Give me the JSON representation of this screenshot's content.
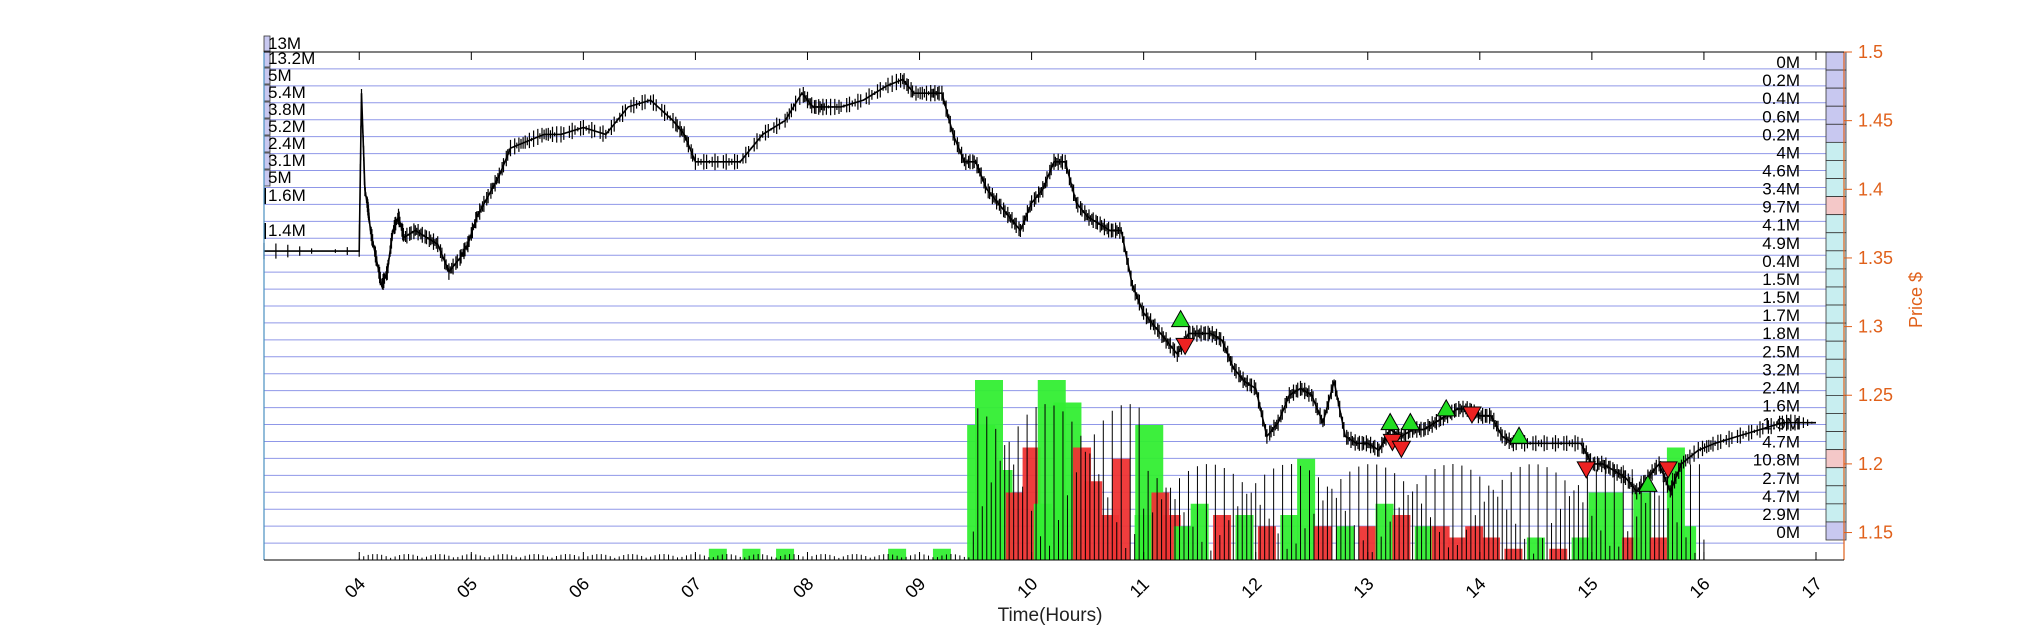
{
  "chart_data": {
    "type": "line",
    "xlabel": "Time(Hours)",
    "ylabel": "Price $",
    "xlim": [
      3.15,
      17.25
    ],
    "ylim": [
      1.13,
      1.5
    ],
    "x_ticks": [
      4,
      5,
      6,
      7,
      8,
      9,
      10,
      11,
      12,
      13,
      14,
      15,
      16,
      17
    ],
    "x_tick_labels": [
      "04",
      "05",
      "06",
      "07",
      "08",
      "09",
      "10",
      "11",
      "12",
      "13",
      "14",
      "15",
      "16",
      "17"
    ],
    "y_ticks": [
      1.15,
      1.2,
      1.25,
      1.3,
      1.35,
      1.4,
      1.45,
      1.5
    ],
    "y_tick_labels": [
      "1.15",
      "1.2",
      "1.25",
      "1.3",
      "1.35",
      "1.4",
      "1.45",
      "1.5"
    ],
    "price_series": {
      "x": [
        3.15,
        4.0,
        4.02,
        4.05,
        4.08,
        4.1,
        4.15,
        4.2,
        4.25,
        4.3,
        4.35,
        4.4,
        4.5,
        4.6,
        4.7,
        4.8,
        4.9,
        4.97,
        5.05,
        5.15,
        5.25,
        5.35,
        5.5,
        5.65,
        5.8,
        6.0,
        6.2,
        6.4,
        6.6,
        6.8,
        6.9,
        7.0,
        7.2,
        7.4,
        7.6,
        7.8,
        7.95,
        8.05,
        8.15,
        8.3,
        8.5,
        8.7,
        8.85,
        8.95,
        9.1,
        9.2,
        9.3,
        9.4,
        9.5,
        9.6,
        9.7,
        9.8,
        9.9,
        10.0,
        10.1,
        10.2,
        10.3,
        10.4,
        10.5,
        10.6,
        10.7,
        10.8,
        10.9,
        11.0,
        11.1,
        11.2,
        11.3,
        11.4,
        11.5,
        11.6,
        11.7,
        11.8,
        11.9,
        12.0,
        12.1,
        12.2,
        12.3,
        12.4,
        12.5,
        12.6,
        12.7,
        12.8,
        12.9,
        13.0,
        13.1,
        13.2,
        13.3,
        13.4,
        13.5,
        13.6,
        13.7,
        13.8,
        13.9,
        14.0,
        14.1,
        14.2,
        14.3,
        14.5,
        14.7,
        14.9,
        15.0,
        15.1,
        15.2,
        15.3,
        15.4,
        15.5,
        15.6,
        15.7,
        15.8,
        15.95,
        16.1,
        16.3,
        16.5,
        16.7,
        17.0
      ],
      "y": [
        1.355,
        1.355,
        1.47,
        1.4,
        1.385,
        1.37,
        1.35,
        1.33,
        1.34,
        1.37,
        1.38,
        1.365,
        1.37,
        1.365,
        1.36,
        1.34,
        1.35,
        1.36,
        1.38,
        1.395,
        1.41,
        1.43,
        1.435,
        1.44,
        1.44,
        1.445,
        1.44,
        1.46,
        1.465,
        1.45,
        1.44,
        1.42,
        1.42,
        1.42,
        1.44,
        1.45,
        1.47,
        1.46,
        1.46,
        1.46,
        1.465,
        1.475,
        1.48,
        1.47,
        1.47,
        1.47,
        1.44,
        1.42,
        1.42,
        1.4,
        1.39,
        1.38,
        1.37,
        1.39,
        1.4,
        1.42,
        1.42,
        1.39,
        1.38,
        1.375,
        1.37,
        1.37,
        1.33,
        1.31,
        1.3,
        1.29,
        1.28,
        1.295,
        1.295,
        1.295,
        1.29,
        1.27,
        1.26,
        1.255,
        1.22,
        1.23,
        1.25,
        1.255,
        1.25,
        1.23,
        1.26,
        1.22,
        1.215,
        1.215,
        1.21,
        1.225,
        1.22,
        1.225,
        1.225,
        1.23,
        1.235,
        1.24,
        1.24,
        1.235,
        1.235,
        1.22,
        1.215,
        1.215,
        1.215,
        1.215,
        1.2,
        1.2,
        1.195,
        1.19,
        1.18,
        1.19,
        1.2,
        1.18,
        1.2,
        1.21,
        1.215,
        1.22,
        1.225,
        1.23,
        1.23
      ]
    },
    "volume_bars": {
      "x": [
        9.55,
        9.62,
        9.75,
        9.85,
        10.0,
        10.1,
        10.18,
        10.32,
        10.45,
        10.55,
        10.7,
        10.8,
        11.0,
        11.05,
        11.15,
        11.25,
        11.35,
        11.5,
        11.7,
        11.9,
        12.1,
        12.3,
        12.45,
        12.6,
        12.8,
        13.0,
        13.15,
        13.3,
        13.5,
        13.65,
        13.8,
        13.95,
        14.1,
        14.3,
        14.5,
        14.7,
        14.9,
        15.05,
        15.2,
        15.35,
        15.45,
        15.6,
        15.75,
        15.85,
        7.2,
        7.5,
        7.8,
        8.8,
        9.2
      ],
      "value": [
        12,
        16,
        8,
        6,
        10,
        5,
        16,
        14,
        10,
        7,
        4,
        9,
        4,
        12,
        6,
        4,
        3,
        5,
        4,
        4,
        3,
        4,
        9,
        3,
        3,
        3,
        5,
        4,
        3,
        3,
        2,
        3,
        2,
        1,
        2,
        1,
        2,
        6,
        6,
        2,
        6,
        2,
        10,
        3,
        1,
        1,
        1,
        1,
        1
      ],
      "side": [
        "buy",
        "buy",
        "buy",
        "sell",
        "sell",
        "buy",
        "buy",
        "buy",
        "sell",
        "sell",
        "sell",
        "sell",
        "buy",
        "buy",
        "sell",
        "sell",
        "buy",
        "buy",
        "sell",
        "buy",
        "sell",
        "buy",
        "buy",
        "sell",
        "buy",
        "sell",
        "buy",
        "sell",
        "buy",
        "sell",
        "sell",
        "sell",
        "sell",
        "sell",
        "buy",
        "sell",
        "buy",
        "buy",
        "buy",
        "sell",
        "buy",
        "sell",
        "buy",
        "buy",
        "buy",
        "buy",
        "buy",
        "buy",
        "buy"
      ],
      "max_value": 16
    },
    "buy_markers": {
      "x": [
        11.33,
        13.2,
        13.38,
        13.7,
        14.35,
        15.5
      ],
      "y": [
        1.3,
        1.225,
        1.225,
        1.235,
        1.215,
        1.18
      ]
    },
    "sell_markers": {
      "x": [
        11.37,
        13.22,
        13.3,
        13.93,
        14.95,
        15.68
      ],
      "y": [
        1.29,
        1.22,
        1.215,
        1.24,
        1.2,
        1.2
      ]
    },
    "left_volume_labels": [
      "13M",
      "13.2M",
      "5M",
      "5.4M",
      "3.8M",
      "5.2M",
      "2.4M",
      "3.1M",
      "5M",
      "1.6M",
      "1.4M"
    ],
    "right_depth_labels": [
      "0M",
      "0.2M",
      "0.4M",
      "0.6M",
      "0.2M",
      "4M",
      "4.6M",
      "3.4M",
      "9.7M",
      "4.1M",
      "4.9M",
      "0.4M",
      "1.5M",
      "1.5M",
      "1.7M",
      "1.8M",
      "2.5M",
      "3.2M",
      "2.4M",
      "1.6M",
      "1.9M",
      "4.7M",
      "10.8M",
      "2.7M",
      "4.7M",
      "2.9M",
      "0M"
    ],
    "right_depth_values": [
      0,
      0.2,
      0.4,
      0.6,
      0.2,
      4,
      4.6,
      3.4,
      9.7,
      4.1,
      4.9,
      0.4,
      1.5,
      1.5,
      1.7,
      1.8,
      2.5,
      3.2,
      2.4,
      1.6,
      1.9,
      4.7,
      10.8,
      2.7,
      4.7,
      2.9,
      0
    ],
    "right_depth_sides": [
      "ask",
      "ask",
      "ask",
      "ask",
      "ask",
      "ask",
      "ask",
      "ask",
      "sell",
      "ask",
      "ask",
      "ask",
      "ask",
      "ask",
      "ask",
      "ask",
      "ask",
      "ask",
      "ask",
      "ask",
      "ask",
      "ask",
      "sell",
      "ask",
      "ask",
      "ask",
      "ask"
    ],
    "grid": true,
    "colors": {
      "price_line": "#000000",
      "grid": "#8f97e8",
      "buy_volume": "#33ee33",
      "sell_volume": "#ee3333",
      "right_axis": "#e0601a",
      "left_axis": "#4a90c0",
      "depth_purple": "#c8c8f0",
      "depth_cyan": "#c8eef0",
      "depth_pink": "#f4c8c8"
    }
  }
}
